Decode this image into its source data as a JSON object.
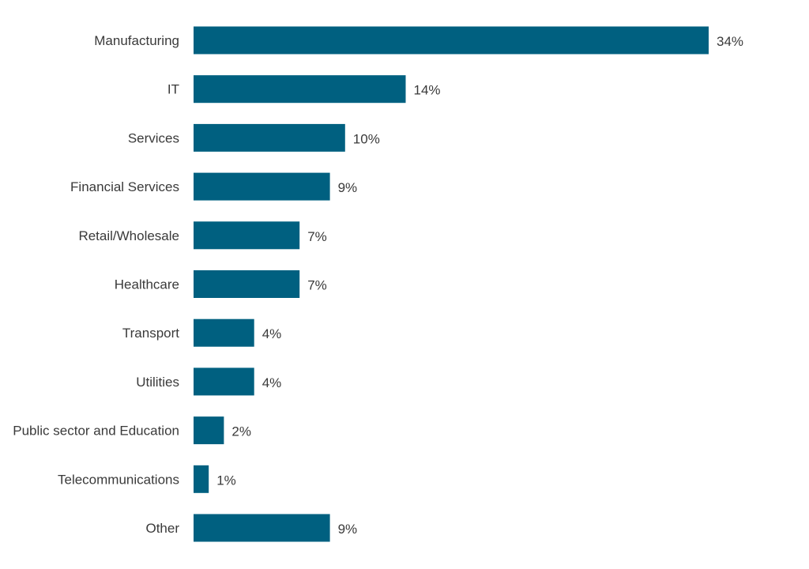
{
  "chart_data": {
    "type": "bar",
    "orientation": "horizontal",
    "categories": [
      "Manufacturing",
      "IT",
      "Services",
      "Financial Services",
      "Retail/Wholesale",
      "Healthcare",
      "Transport",
      "Utilities",
      "Public sector and Education",
      "Telecommunications",
      "Other"
    ],
    "values": [
      34,
      14,
      10,
      9,
      7,
      7,
      4,
      4,
      2,
      1,
      9
    ],
    "value_labels": [
      "34%",
      "14%",
      "10%",
      "9%",
      "7%",
      "7%",
      "4%",
      "4%",
      "2%",
      "1%",
      "9%"
    ],
    "xlim": [
      0,
      34
    ],
    "grid": false,
    "legend": "none",
    "bar_color": "#006080"
  }
}
